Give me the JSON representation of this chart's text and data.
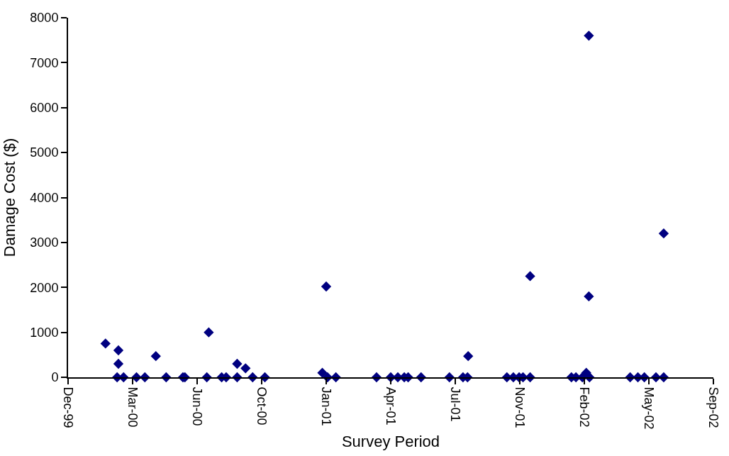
{
  "chart_data": {
    "type": "scatter",
    "xlabel": "Survey Period",
    "ylabel": "Damage Cost ($)",
    "x": [
      "2000-02-02",
      "2000-02-20",
      "2000-02-22",
      "2000-02-22",
      "2000-03-01",
      "2000-03-21",
      "2000-04-03",
      "2000-04-20",
      "2000-05-06",
      "2000-06-01",
      "2000-06-04",
      "2000-07-08",
      "2000-07-11",
      "2000-07-31",
      "2000-08-07",
      "2000-08-24",
      "2000-08-24",
      "2000-09-06",
      "2000-09-17",
      "2000-10-06",
      "2001-01-03",
      "2001-01-09",
      "2001-01-11",
      "2001-01-24",
      "2001-03-28",
      "2001-04-19",
      "2001-04-30",
      "2001-05-10",
      "2001-05-16",
      "2001-06-05",
      "2001-07-19",
      "2001-08-09",
      "2001-08-16",
      "2001-08-17",
      "2001-10-16",
      "2001-10-26",
      "2001-11-04",
      "2001-11-10",
      "2001-11-21",
      "2001-11-21",
      "2002-01-24",
      "2002-01-31",
      "2002-02-10",
      "2002-02-16",
      "2002-02-20",
      "2002-02-20",
      "2002-02-21",
      "2002-04-25",
      "2002-05-07",
      "2002-05-17",
      "2002-06-04",
      "2002-06-16",
      "2002-06-16"
    ],
    "series": [
      {
        "color": "#000080",
        "values": [
          750,
          0,
          600,
          300,
          0,
          0,
          0,
          470,
          0,
          0,
          0,
          0,
          1000,
          0,
          0,
          300,
          0,
          200,
          0,
          0,
          100,
          2020,
          0,
          0,
          0,
          0,
          0,
          0,
          0,
          0,
          0,
          0,
          0,
          470,
          0,
          0,
          0,
          0,
          0,
          2250,
          0,
          0,
          0,
          100,
          7600,
          1800,
          0,
          0,
          0,
          0,
          0,
          0,
          3200
        ]
      }
    ],
    "marker": "diamond",
    "xlim": [
      "1999-12-06",
      "2002-09-01"
    ],
    "xticks": [
      {
        "value": "1999-12-06",
        "label": "Dec-99"
      },
      {
        "value": "2000-03-15",
        "label": "Mar-00"
      },
      {
        "value": "2000-06-23",
        "label": "Jun-00"
      },
      {
        "value": "2000-10-01",
        "label": "Oct-00"
      },
      {
        "value": "2001-01-09",
        "label": "Jan-01"
      },
      {
        "value": "2001-04-19",
        "label": "Apr-01"
      },
      {
        "value": "2001-07-28",
        "label": "Jul-01"
      },
      {
        "value": "2001-11-05",
        "label": "Nov-01"
      },
      {
        "value": "2002-02-13",
        "label": "Feb-02"
      },
      {
        "value": "2002-05-24",
        "label": "May-02"
      },
      {
        "value": "2002-09-01",
        "label": "Sep-02"
      }
    ],
    "ylim": [
      0,
      8000
    ],
    "yticks": [
      0,
      1000,
      2000,
      3000,
      4000,
      5000,
      6000,
      7000,
      8000
    ]
  }
}
